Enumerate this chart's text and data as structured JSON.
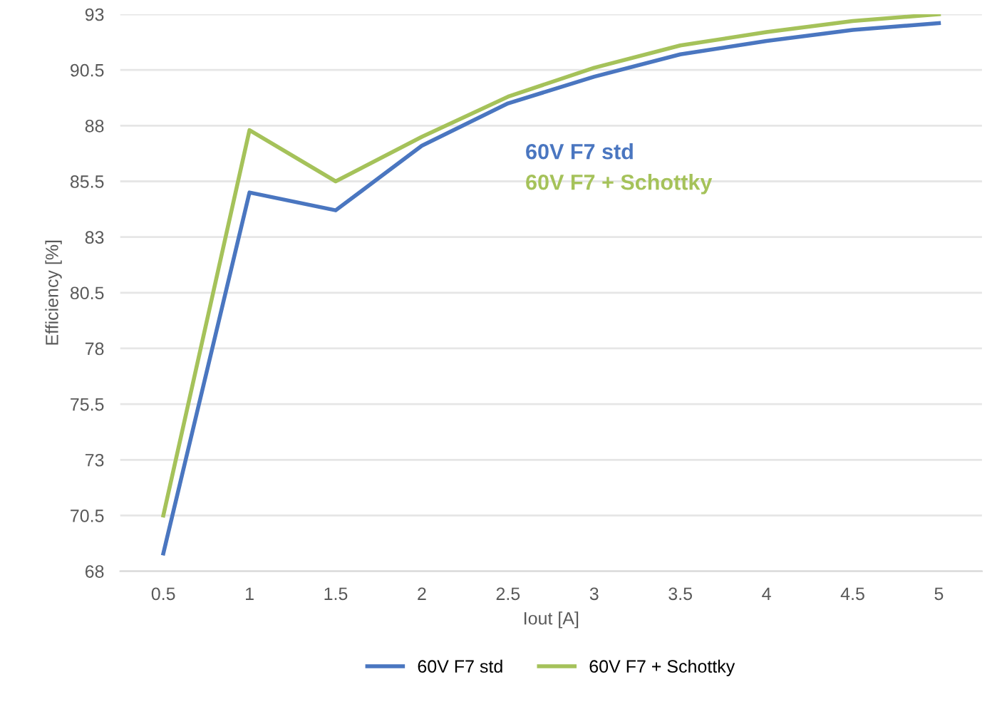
{
  "chart_data": {
    "type": "line",
    "xlabel": "Iout [A]",
    "ylabel": "Efficiency [%]",
    "categories": [
      "0.5",
      "1",
      "1.5",
      "2",
      "2.5",
      "3",
      "3.5",
      "4",
      "4.5",
      "5"
    ],
    "series": [
      {
        "name": "60V F7 std",
        "color": "#4a76c0",
        "values": [
          68.8,
          85.0,
          84.2,
          87.1,
          89.0,
          90.2,
          91.2,
          91.8,
          92.3,
          92.6
        ]
      },
      {
        "name": "60V F7 + Schottky",
        "color": "#a5c25a",
        "values": [
          70.5,
          87.8,
          85.5,
          87.5,
          89.3,
          90.6,
          91.6,
          92.2,
          92.7,
          93.0
        ]
      }
    ],
    "annotations": [
      "60V F7 std",
      "60V F7 + Schottky"
    ],
    "ylim": [
      68,
      93
    ],
    "yticks": [
      68,
      70.5,
      73,
      75.5,
      78,
      80.5,
      83,
      85.5,
      88,
      90.5,
      93
    ],
    "grid": "y",
    "legend": "bottom",
    "line_style": "solid",
    "marker": "none"
  }
}
